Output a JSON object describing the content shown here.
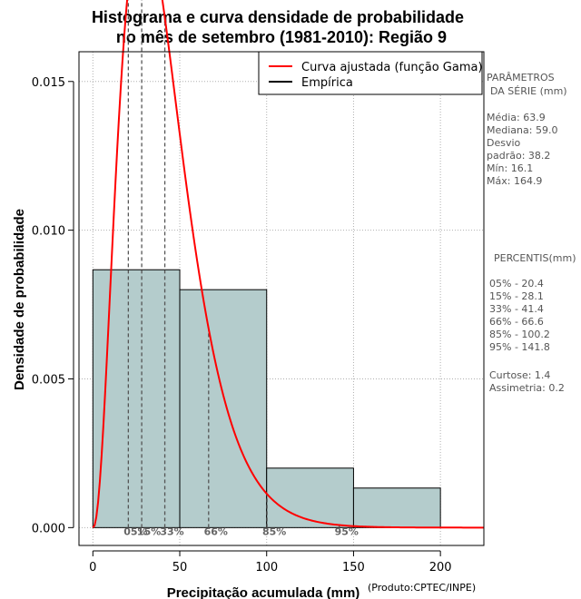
{
  "chart_data": {
    "type": "bar",
    "title": [
      "Histograma e curva densidade de probabilidade",
      "no mês de setembro (1981-2010): Região 9"
    ],
    "xlabel": "Precipitação acumulada (mm)",
    "ylabel": "Densidade de probabilidade",
    "credit": "(Produto:CPTEC/INPE)",
    "xlim": [
      -8,
      225
    ],
    "ylim": [
      -0.0006,
      0.016
    ],
    "x_ticks": [
      0,
      50,
      100,
      150,
      200
    ],
    "x_tick_labels": [
      "0",
      "50",
      "100",
      "150",
      "200"
    ],
    "y_ticks": [
      0.0,
      0.005,
      0.01,
      0.015
    ],
    "y_tick_labels": [
      "0.000",
      "0.005",
      "0.010",
      "0.015"
    ],
    "grid": true,
    "histogram": [
      {
        "x0": 0,
        "x1": 50,
        "density": 0.00867
      },
      {
        "x0": 50,
        "x1": 100,
        "density": 0.008
      },
      {
        "x0": 100,
        "x1": 150,
        "density": 0.002
      },
      {
        "x0": 150,
        "x1": 200,
        "density": 0.00133
      }
    ],
    "gamma_fit": {
      "shape": 3.33,
      "scale": 12.3
    },
    "percentile_lines": [
      {
        "label": "05%",
        "x": 20.4
      },
      {
        "label": "15%",
        "x": 28.1
      },
      {
        "label": "33%",
        "x": 41.4
      },
      {
        "label": "66%",
        "x": 66.6
      },
      {
        "label": "85%",
        "x": 100.2
      },
      {
        "label": "95%",
        "x": 141.8
      }
    ],
    "legend": {
      "position": "top-right",
      "entries": [
        {
          "label": "Curva ajustada (função Gama)",
          "color": "#ff0000"
        },
        {
          "label": "Empírica",
          "color": "#000000"
        }
      ]
    },
    "colors": {
      "bars": "#b4cccc",
      "curve": "#ff0000",
      "grid": "#b0b0b0",
      "dashed": "#555555"
    }
  },
  "side_panel": {
    "parametros_title": [
      "PARÂMETROS",
      "DA SÉRIE (mm)"
    ],
    "parametros": [
      "Média:  63.9",
      "Mediana:  59.0",
      "Desvio",
      "padrão:  38.2",
      "Mín:  16.1",
      "Máx:  164.9"
    ],
    "percentis_title": "PERCENTIS(mm)",
    "percentis": [
      "05% -  20.4",
      "15% -  28.1",
      "33% -  41.4",
      "66% -  66.6",
      "85% -  100.2",
      "95% -  141.8"
    ],
    "extra": [
      "Curtose:  1.4",
      "Assimetria:  0.2"
    ]
  }
}
